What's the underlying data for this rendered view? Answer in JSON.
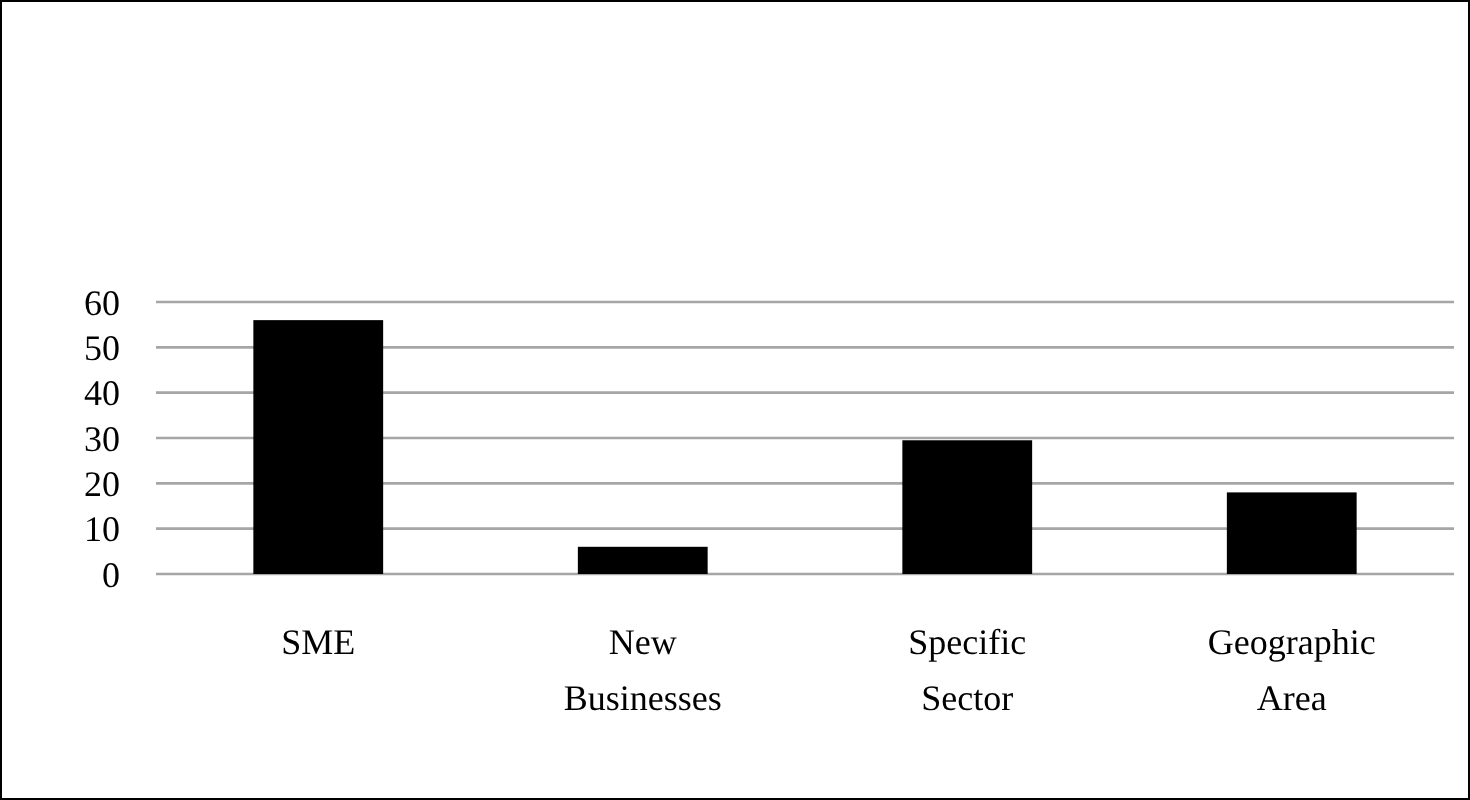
{
  "chart_data": {
    "type": "bar",
    "categories": [
      "SME",
      "New Businesses",
      "Specific Sector",
      "Geographic Area"
    ],
    "values": [
      56,
      6,
      29.5,
      18
    ],
    "color": "#000000",
    "ylim": [
      0,
      60
    ],
    "yticks": [
      0,
      10,
      20,
      30,
      40,
      50,
      60
    ],
    "grid": "y"
  }
}
